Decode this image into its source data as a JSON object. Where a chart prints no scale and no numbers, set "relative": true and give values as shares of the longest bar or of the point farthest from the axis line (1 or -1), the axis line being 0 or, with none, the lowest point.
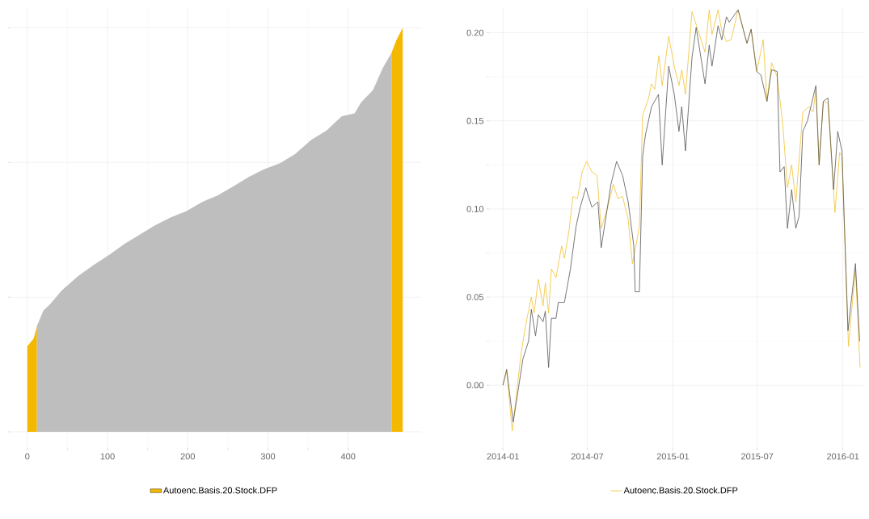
{
  "chart_data": [
    {
      "type": "area",
      "relative": true,
      "xlim": [
        -24,
        491
      ],
      "xticks": [
        0,
        100,
        200,
        300,
        400
      ],
      "grid": true,
      "legend": "bottom",
      "series": [
        {
          "name": "Autoenc.Basis.20.Stock.DFP",
          "color": "#f5b800",
          "x": [
            0,
            8,
            12
          ],
          "values": [
            0.212,
            0.231,
            0.262
          ]
        },
        {
          "color": "#bebebe",
          "x": [
            12,
            20,
            28,
            43,
            63,
            82,
            102,
            121,
            140,
            160,
            179,
            198,
            218,
            237,
            257,
            276,
            295,
            315,
            334,
            354,
            373,
            392,
            408,
            416,
            431,
            443,
            454
          ],
          "values": [
            0.262,
            0.3,
            0.315,
            0.35,
            0.385,
            0.412,
            0.438,
            0.465,
            0.488,
            0.512,
            0.531,
            0.546,
            0.569,
            0.585,
            0.608,
            0.631,
            0.65,
            0.665,
            0.688,
            0.723,
            0.746,
            0.781,
            0.788,
            0.815,
            0.846,
            0.9,
            0.938
          ]
        },
        {
          "color": "#f5b800",
          "x": [
            454,
            460,
            468
          ],
          "values": [
            0.938,
            0.969,
            1.0
          ]
        }
      ]
    },
    {
      "type": "line",
      "xlim": [
        "2013-11-27",
        "2016-02-14"
      ],
      "ylim": [
        -0.037,
        0.214
      ],
      "xticks": [
        "2014-01",
        "2014-07",
        "2015-01",
        "2015-07",
        "2016-01"
      ],
      "yticks": [
        {
          "value": 0,
          "label": "0.00"
        },
        {
          "value": 0.05,
          "label": "0.05"
        },
        {
          "value": 0.1,
          "label": "0.10"
        },
        {
          "value": 0.15,
          "label": "0.15"
        },
        {
          "value": 0.2,
          "label": "0.20"
        }
      ],
      "grid": true,
      "legend": "bottom",
      "series": [
        {
          "name": "Autoenc.Basis.20.Stock.DFP",
          "color": "#f2c12e",
          "x": [
            "2014-01-01",
            "2014-01-09",
            "2014-01-21",
            "2014-02-09",
            "2014-02-18",
            "2014-03-03",
            "2014-03-09",
            "2014-03-18",
            "2014-03-28",
            "2014-04-02",
            "2014-04-09",
            "2014-04-15",
            "2014-04-25",
            "2014-05-07",
            "2014-05-13",
            "2014-05-23",
            "2014-05-31",
            "2014-06-10",
            "2014-06-20",
            "2014-06-30",
            "2014-07-11",
            "2014-07-22",
            "2014-07-31",
            "2014-08-14",
            "2014-08-26",
            "2014-09-05",
            "2014-09-15",
            "2014-09-27",
            "2014-10-06",
            "2014-10-12",
            "2014-10-21",
            "2014-10-28",
            "2014-11-10",
            "2014-11-16",
            "2014-11-23",
            "2014-12-02",
            "2014-12-09",
            "2014-12-23",
            "2015-01-04",
            "2015-01-14",
            "2015-01-20",
            "2015-01-28",
            "2015-02-11",
            "2015-03-11",
            "2015-03-20",
            "2015-03-26",
            "2015-04-08",
            "2015-04-16",
            "2015-04-26",
            "2015-05-06",
            "2015-05-21",
            "2015-06-09",
            "2015-06-18",
            "2015-06-30",
            "2015-07-14",
            "2015-07-22",
            "2015-08-01",
            "2015-08-13",
            "2015-08-25",
            "2015-08-30",
            "2015-09-04",
            "2015-09-13",
            "2015-09-22",
            "2015-10-07",
            "2015-10-20",
            "2015-10-29",
            "2015-11-04",
            "2015-11-11",
            "2015-11-20",
            "2015-11-30",
            "2015-12-15",
            "2015-12-25",
            "2015-12-30",
            "2016-01-13",
            "2016-01-28",
            "2016-02-07"
          ],
          "values": [
            0.0,
            0.008,
            -0.026,
            0.018,
            0.033,
            0.05,
            0.041,
            0.06,
            0.045,
            0.058,
            0.041,
            0.066,
            0.061,
            0.079,
            0.072,
            0.088,
            0.107,
            0.106,
            0.121,
            0.127,
            0.121,
            0.119,
            0.089,
            0.101,
            0.114,
            0.106,
            0.107,
            0.094,
            0.069,
            0.077,
            0.09,
            0.153,
            0.163,
            0.171,
            0.168,
            0.187,
            0.17,
            0.198,
            0.181,
            0.17,
            0.179,
            0.165,
            0.212,
            0.189,
            0.213,
            0.199,
            0.213,
            0.201,
            0.195,
            0.196,
            0.213,
            0.194,
            0.202,
            0.178,
            0.196,
            0.161,
            0.183,
            0.175,
            0.148,
            0.13,
            0.112,
            0.125,
            0.104,
            0.155,
            0.158,
            0.155,
            0.168,
            0.125,
            0.161,
            0.16,
            0.098,
            0.132,
            0.13,
            0.022,
            0.066,
            0.01
          ]
        },
        {
          "color": "#555555",
          "x": [
            "2014-01-01",
            "2014-01-09",
            "2014-01-23",
            "2014-02-13",
            "2014-02-25",
            "2014-03-03",
            "2014-03-12",
            "2014-03-18",
            "2014-03-28",
            "2014-04-02",
            "2014-04-09",
            "2014-04-15",
            "2014-04-25",
            "2014-04-30",
            "2014-05-13",
            "2014-05-26",
            "2014-06-07",
            "2014-06-16",
            "2014-06-28",
            "2014-07-11",
            "2014-07-24",
            "2014-07-31",
            "2014-08-21",
            "2014-09-02",
            "2014-09-15",
            "2014-09-27",
            "2014-10-09",
            "2014-10-12",
            "2014-10-21",
            "2014-10-28",
            "2014-11-03",
            "2014-11-16",
            "2014-12-01",
            "2014-12-09",
            "2014-12-23",
            "2015-01-04",
            "2015-01-14",
            "2015-01-20",
            "2015-01-28",
            "2015-02-11",
            "2015-02-20",
            "2015-03-11",
            "2015-03-20",
            "2015-03-26",
            "2015-04-08",
            "2015-04-16",
            "2015-04-26",
            "2015-05-02",
            "2015-05-21",
            "2015-06-09",
            "2015-06-18",
            "2015-06-30",
            "2015-07-09",
            "2015-07-22",
            "2015-08-01",
            "2015-08-13",
            "2015-08-19",
            "2015-08-28",
            "2015-09-04",
            "2015-09-13",
            "2015-09-22",
            "2015-09-29",
            "2015-10-07",
            "2015-10-17",
            "2015-11-04",
            "2015-11-11",
            "2015-11-20",
            "2015-11-30",
            "2015-12-12",
            "2015-12-21",
            "2015-12-30",
            "2016-01-12",
            "2016-01-28",
            "2016-02-06"
          ],
          "values": [
            0.0,
            0.009,
            -0.021,
            0.015,
            0.025,
            0.043,
            0.028,
            0.04,
            0.036,
            0.042,
            0.01,
            0.038,
            0.038,
            0.047,
            0.047,
            0.066,
            0.09,
            0.101,
            0.112,
            0.101,
            0.104,
            0.078,
            0.114,
            0.127,
            0.119,
            0.104,
            0.079,
            0.053,
            0.053,
            0.13,
            0.142,
            0.158,
            0.165,
            0.125,
            0.181,
            0.165,
            0.144,
            0.158,
            0.133,
            0.186,
            0.203,
            0.171,
            0.193,
            0.181,
            0.204,
            0.196,
            0.209,
            0.206,
            0.213,
            0.194,
            0.202,
            0.178,
            0.176,
            0.161,
            0.179,
            0.178,
            0.121,
            0.124,
            0.089,
            0.111,
            0.089,
            0.096,
            0.144,
            0.15,
            0.17,
            0.125,
            0.161,
            0.163,
            0.111,
            0.144,
            0.133,
            0.031,
            0.069,
            0.025
          ]
        }
      ]
    }
  ]
}
